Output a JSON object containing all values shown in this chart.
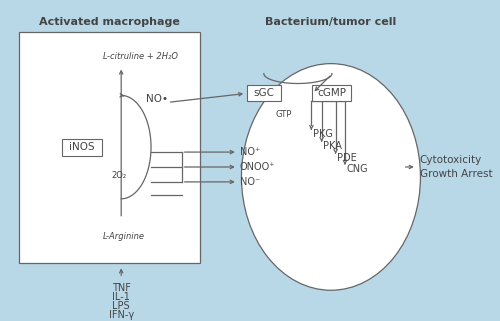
{
  "bg_color": "#b8d8e8",
  "rect_color": "#ffffff",
  "ellipse_color": "#ffffff",
  "line_color": "#666666",
  "text_color": "#444444",
  "title_macrophage": "Activated macrophage",
  "title_bacterium": "Bacterium/tumor cell",
  "label_inos": "iNOS",
  "label_citrulline": "L-citruline + 2H₂O",
  "label_arginine": "L-Arginine",
  "label_no_dot": "NO•",
  "label_2o2": "2O₂",
  "label_sgc": "sGC",
  "label_cgmp": "cGMP",
  "label_gtp": "GTP",
  "label_pkg": "PKG",
  "label_pka": "PKA",
  "label_pde": "PDE",
  "label_cng": "CNG",
  "label_no_plus": "NO⁺",
  "label_onoo_minus": "ONOO⁺",
  "label_no_minus": "NO⁻",
  "label_cytotox1": "Cytotoxicity",
  "label_cytotox2": "Growth Arrest",
  "label_tnf": "TNF",
  "label_il1": "IL-1",
  "label_lps": "LPS",
  "label_ifn": "IFN-γ"
}
